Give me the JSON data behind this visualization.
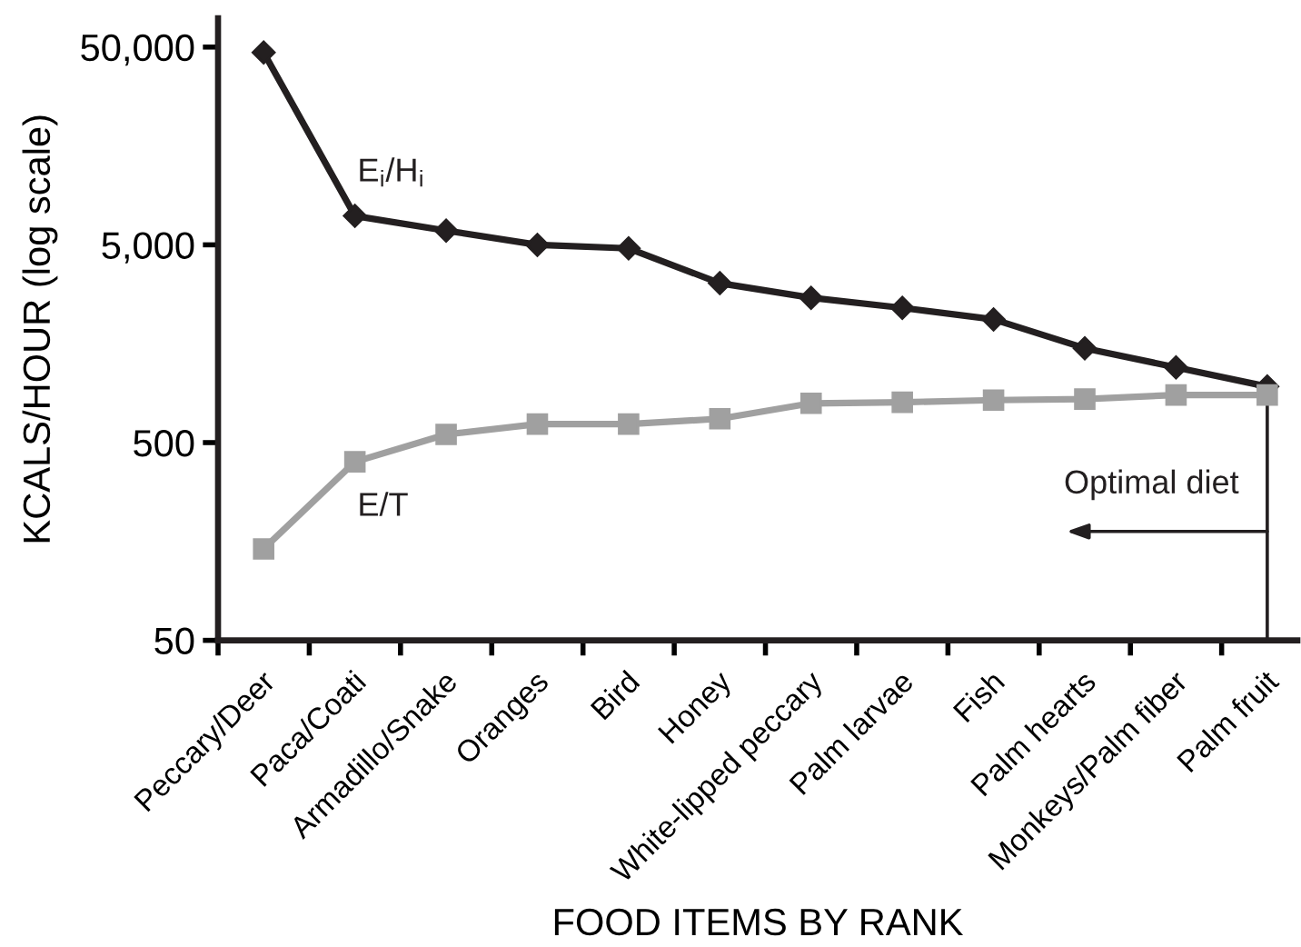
{
  "chart_data": {
    "type": "line",
    "xlabel": "FOOD ITEMS BY RANK",
    "ylabel": "KCALS/HOUR (log scale)",
    "categories": [
      "Peccary/Deer",
      "Paca/Coati",
      "Armadillo/Snake",
      "Oranges",
      "Bird",
      "Honey",
      "White-lipped peccary",
      "Palm larvae",
      "Fish",
      "Palm hearts",
      "Monkeys/Palm fiber",
      "Palm fruit"
    ],
    "series": [
      {
        "name": "E$_{i}$/H$_{i}$",
        "color": "#231f20",
        "marker": "diamond",
        "values": [
          47000,
          7000,
          5900,
          5000,
          4800,
          3200,
          2700,
          2400,
          2100,
          1500,
          1200,
          960
        ]
      },
      {
        "name": "E/T",
        "color": "#a0a0a0",
        "marker": "square",
        "values": [
          145,
          400,
          550,
          620,
          620,
          660,
          790,
          800,
          820,
          830,
          870,
          870
        ]
      }
    ],
    "log": "y",
    "ylim": [
      50,
      70000
    ],
    "yticks": [
      50,
      500,
      {
        "value": 5000,
        "label": "5,000"
      },
      {
        "value": 50000,
        "label": "50,000"
      }
    ],
    "line_style": "solid",
    "ref_lines": [
      {
        "axis": "x",
        "value": "Palm fruit",
        "label": "Optimal diet",
        "color": "#231f20"
      }
    ]
  }
}
